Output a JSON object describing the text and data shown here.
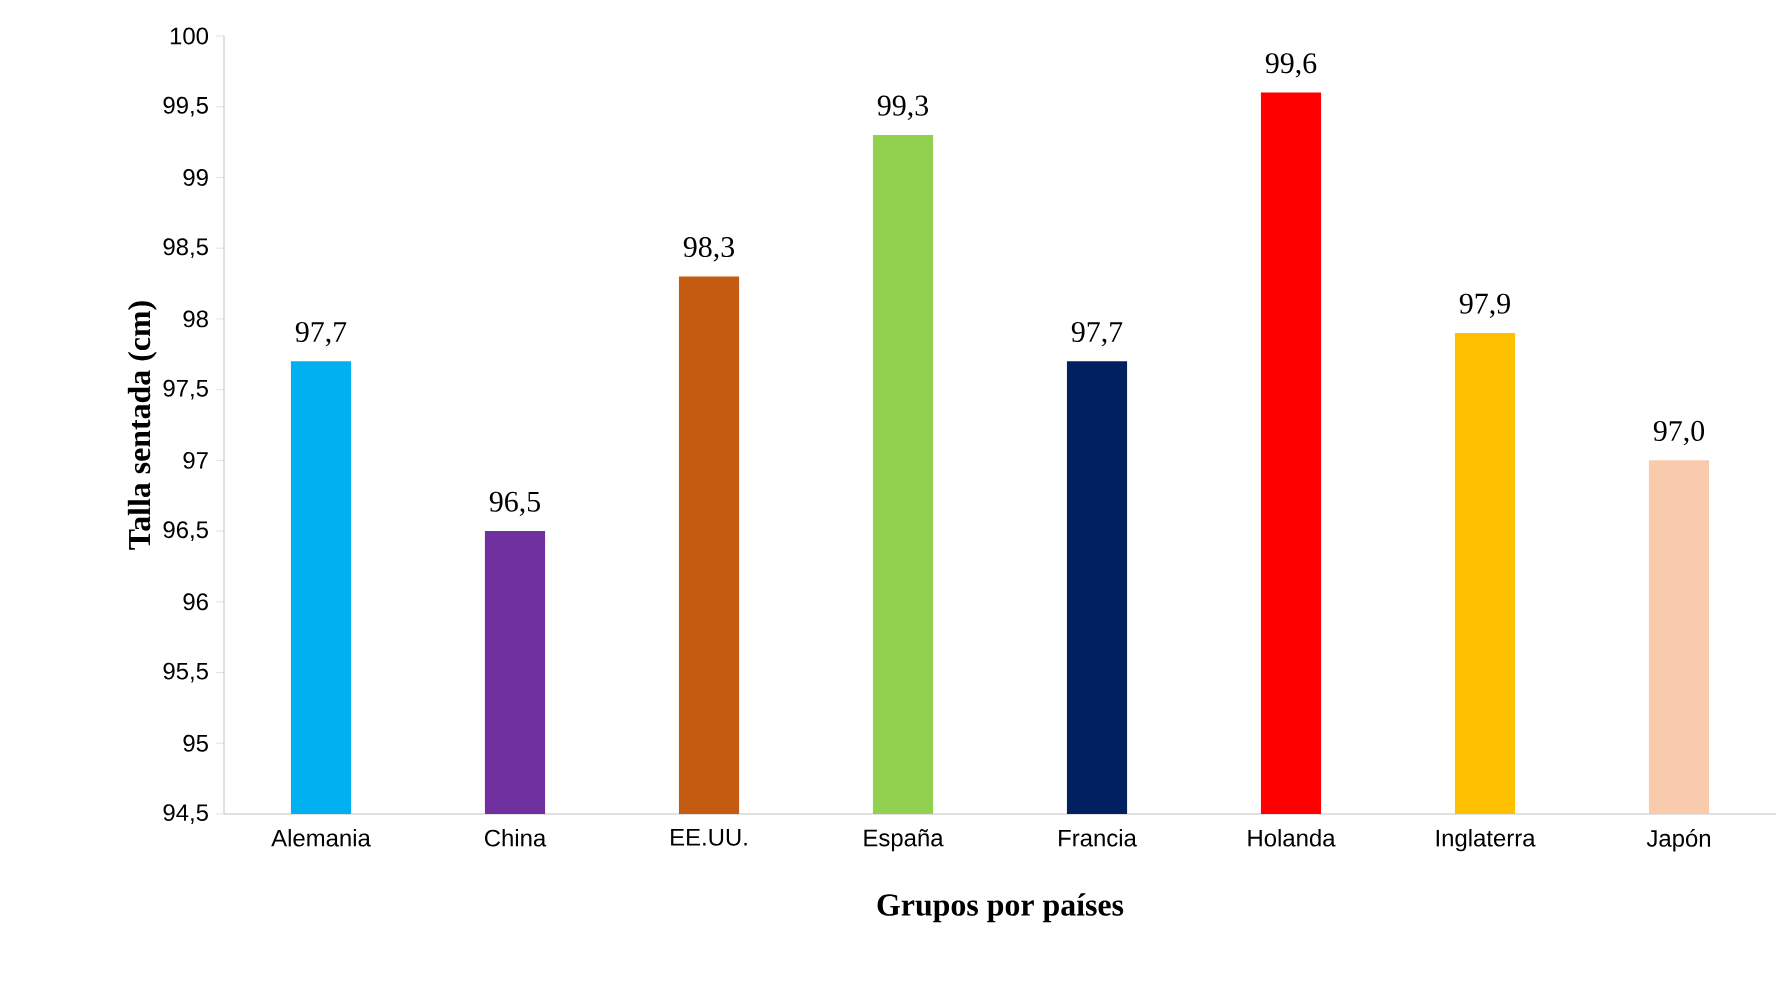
{
  "chart_data": {
    "type": "bar",
    "xlabel": "Grupos por países",
    "ylabel": "Talla sentada (cm)",
    "categories": [
      "Alemania",
      "China",
      "EE.UU.",
      "España",
      "Francia",
      "Holanda",
      "Inglaterra",
      "Japón"
    ],
    "values": [
      97.7,
      96.5,
      98.3,
      99.3,
      97.7,
      99.6,
      97.9,
      97.0
    ],
    "colors": [
      "#00b0f0",
      "#7030a0",
      "#c55a11",
      "#92d050",
      "#002060",
      "#ff0000",
      "#ffc000",
      "#f8cbad"
    ],
    "value_labels": [
      "97,7",
      "96,5",
      "98,3",
      "99,3",
      "97,7",
      "99,6",
      "97,9",
      "97,0"
    ],
    "ylim": [
      94.5,
      100
    ],
    "yticks": [
      {
        "value": 94.5,
        "label": "94,5"
      },
      95,
      {
        "value": 95.5,
        "label": "95,5"
      },
      96,
      {
        "value": 96.5,
        "label": "96,5"
      },
      97,
      {
        "value": 97.5,
        "label": "97,5"
      },
      98,
      {
        "value": 98.5,
        "label": "98,5"
      },
      99,
      {
        "value": 99.5,
        "label": "99,5"
      },
      100
    ],
    "grid": false
  }
}
